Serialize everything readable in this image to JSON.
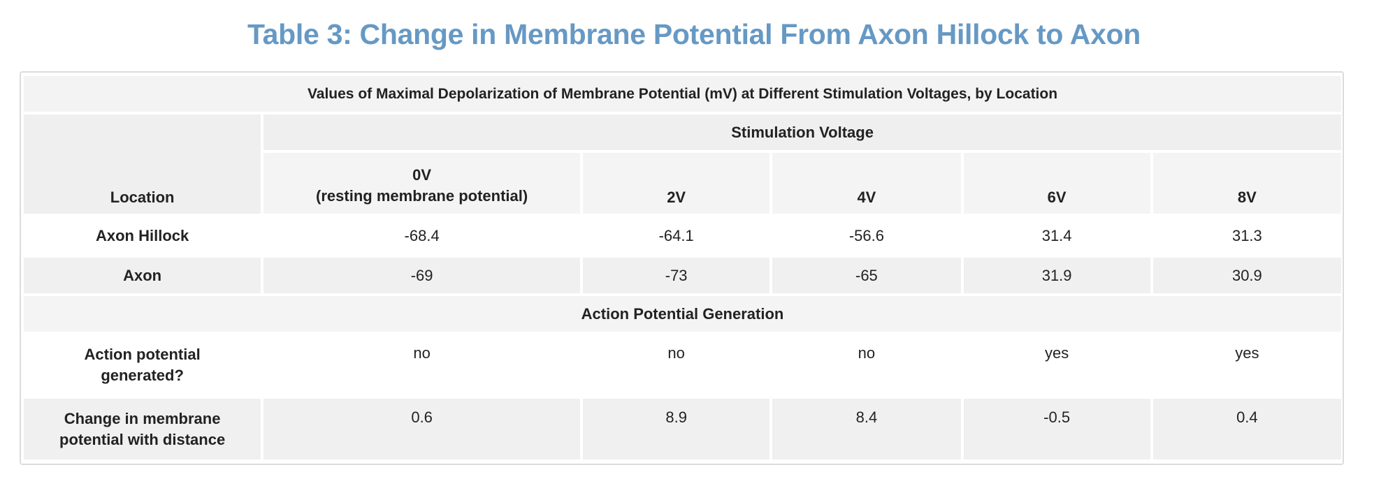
{
  "title": "Table 3: Change in Membrane Potential From Axon Hillock to Axon",
  "table": {
    "caption": "Values of Maximal Depolarization of Membrane Potential (mV) at Different Stimulation Voltages, by Location",
    "group_header": "Stimulation Voltage",
    "location_header": "Location",
    "columns": [
      {
        "label": "0V",
        "sub": "(resting membrane potential)"
      },
      {
        "label": "2V"
      },
      {
        "label": "4V"
      },
      {
        "label": "6V"
      },
      {
        "label": "8V"
      }
    ],
    "rows": [
      {
        "label": "Axon Hillock",
        "values": [
          "-68.4",
          "-64.1",
          "-56.6",
          "31.4",
          "31.3"
        ]
      },
      {
        "label": "Axon",
        "values": [
          "-69",
          "-73",
          "-65",
          "31.9",
          "30.9"
        ]
      }
    ],
    "section_header": "Action Potential Generation",
    "rows2": [
      {
        "label_1": "Action potential",
        "label_2": "generated?",
        "values": [
          "no",
          "no",
          "no",
          "yes",
          "yes"
        ]
      },
      {
        "label_1": "Change in membrane",
        "label_2": "potential with distance",
        "values": [
          "0.6",
          "8.9",
          "8.4",
          "-0.5",
          "0.4"
        ]
      }
    ]
  }
}
